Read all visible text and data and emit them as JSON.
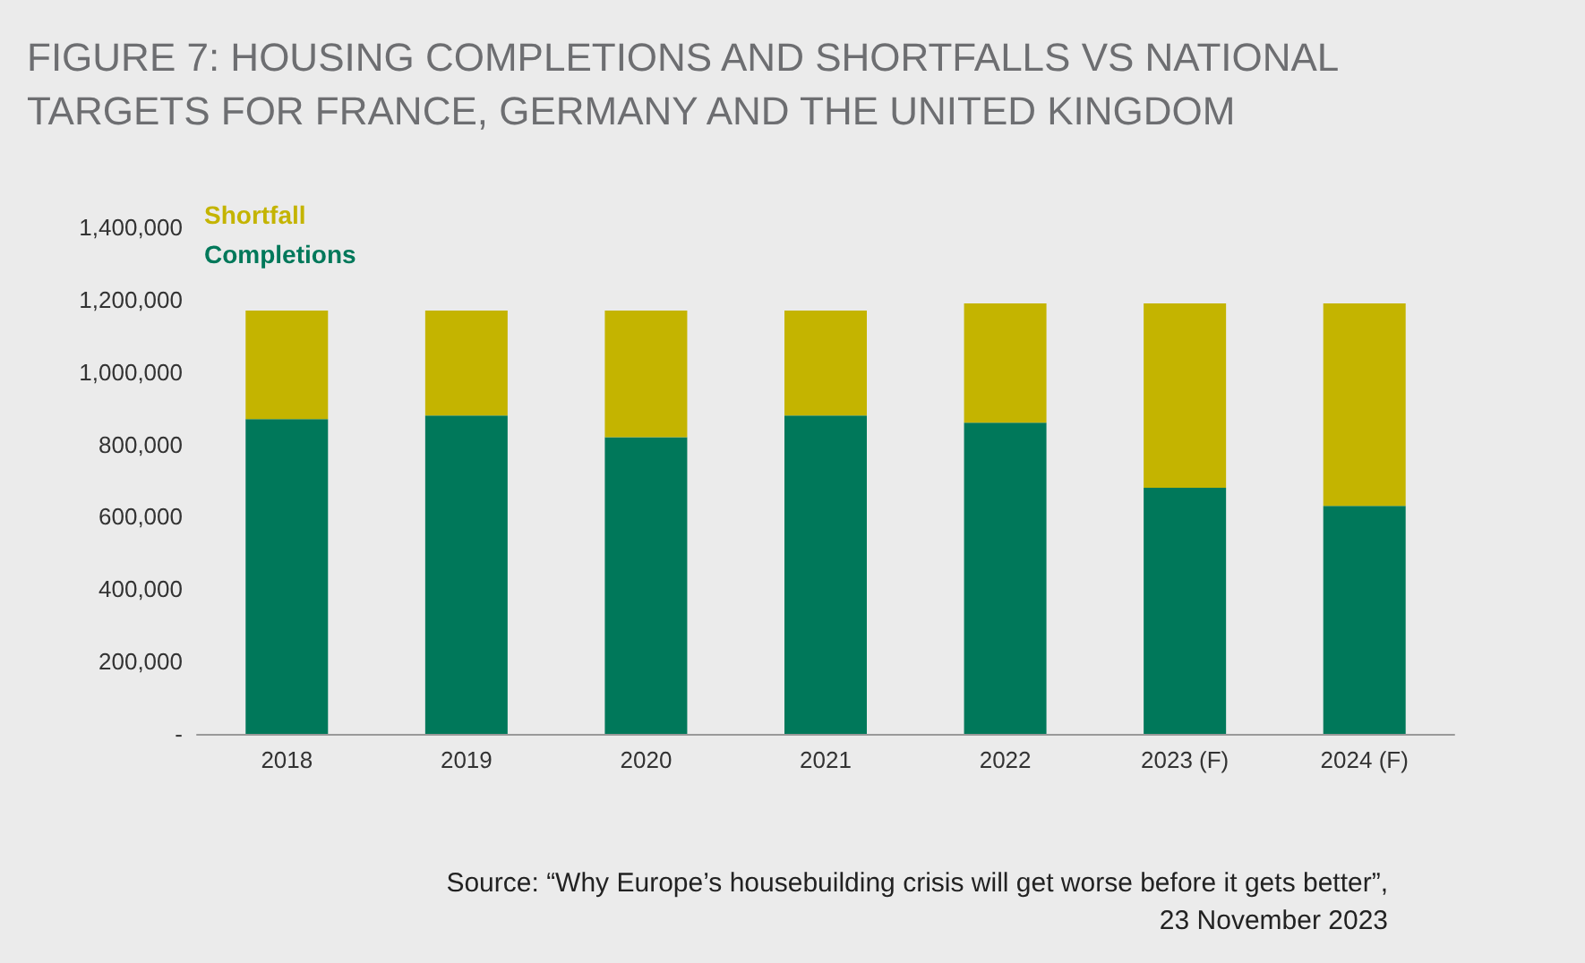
{
  "chart_data": {
    "type": "bar",
    "title": "FIGURE 7: HOUSING COMPLETIONS AND SHORTFALLS VS NATIONAL TARGETS FOR FRANCE, GERMANY AND THE UNITED KINGDOM",
    "categories": [
      "2018",
      "2019",
      "2020",
      "2021",
      "2022",
      "2023 (F)",
      "2024 (F)"
    ],
    "stacked": true,
    "series": [
      {
        "name": "Completions",
        "color": "#00785a",
        "values": [
          870000,
          880000,
          820000,
          880000,
          860000,
          680000,
          630000
        ]
      },
      {
        "name": "Shortfall",
        "color": "#c4b400",
        "values": [
          300000,
          290000,
          350000,
          290000,
          330000,
          510000,
          560000
        ]
      }
    ],
    "ylim": [
      0,
      1400000
    ],
    "yticks": [
      {
        "value": 0,
        "label": "-"
      },
      {
        "value": 200000,
        "label": "200,000"
      },
      {
        "value": 400000,
        "label": "400,000"
      },
      {
        "value": 600000,
        "label": "600,000"
      },
      {
        "value": 800000,
        "label": "800,000"
      },
      {
        "value": 1000000,
        "label": "1,000,000"
      },
      {
        "value": 1200000,
        "label": "1,200,000"
      },
      {
        "value": 1400000,
        "label": "1,400,000"
      }
    ],
    "grid": false,
    "legend": "top left",
    "annotations": [
      "Source: “Why Europe’s housebuilding crisis will get worse before it gets better”,\n23 November 2023"
    ]
  }
}
